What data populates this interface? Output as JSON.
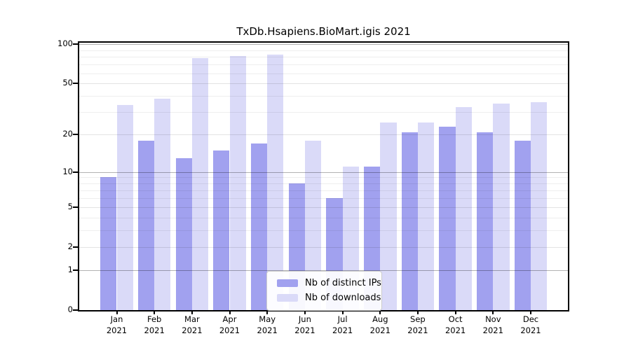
{
  "chart_data": {
    "type": "bar",
    "title": "TxDb.Hsapiens.BioMart.igis 2021",
    "categories": [
      "Jan 2021",
      "Feb 2021",
      "Mar 2021",
      "Apr 2021",
      "May 2021",
      "Jun 2021",
      "Jul 2021",
      "Aug 2021",
      "Sep 2021",
      "Oct 2021",
      "Nov 2021",
      "Dec 2021"
    ],
    "series": [
      {
        "name": "Nb of distinct IPs",
        "color": "#a1a1ef",
        "values": [
          9,
          18,
          13,
          15,
          17,
          8,
          6,
          11,
          21,
          23,
          21,
          18
        ]
      },
      {
        "name": "Nb of downloads",
        "color": "#dadaf8",
        "values": [
          34,
          38,
          78,
          81,
          83,
          18,
          11,
          25,
          25,
          33,
          35,
          36
        ]
      }
    ],
    "yscale": "log10(1+v)",
    "ylim": [
      0,
      100
    ],
    "yticks": [
      0,
      1,
      2,
      5,
      10,
      20,
      50,
      100
    ],
    "emphasized_gridlines": [
      1,
      10,
      100
    ],
    "minor_gridlines": [
      3,
      4,
      6,
      7,
      8,
      9,
      30,
      40,
      60,
      70,
      80,
      90
    ],
    "grid": "on",
    "legend_position": "bottom-center"
  }
}
